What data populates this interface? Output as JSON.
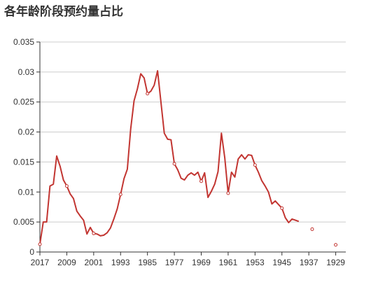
{
  "chart_data": {
    "type": "line",
    "title": "各年龄阶段预约量占比",
    "xlabel": "",
    "ylabel": "",
    "x_direction": "descending",
    "x_axis_min": 2017,
    "x_axis_max": 1926,
    "ylim": [
      0,
      0.035
    ],
    "y_ticks": [
      0,
      0.005,
      0.01,
      0.015,
      0.02,
      0.025,
      0.03,
      0.035
    ],
    "y_tick_labels": [
      "0",
      "0.005",
      "0.01",
      "0.015",
      "0.02",
      "0.025",
      "0.03",
      "0.035"
    ],
    "x_ticks": [
      2017,
      2009,
      2001,
      1993,
      1985,
      1977,
      1969,
      1961,
      1953,
      1945,
      1937,
      1929
    ],
    "x_tick_labels": [
      "2017",
      "2009",
      "2001",
      "1993",
      "1985",
      "1977",
      "1969",
      "1961",
      "1953",
      "1945",
      "1937",
      "1929"
    ],
    "grid": true,
    "legend": "none",
    "colors": {
      "line": "#c23531",
      "grid": "#cccccc",
      "axis": "#333333",
      "title": "#333333"
    },
    "series": [
      {
        "x": [
          2017,
          2016,
          2015,
          2014,
          2013,
          2012,
          2011,
          2010,
          2009,
          2008,
          2007,
          2006,
          2005,
          2004,
          2003,
          2002,
          2001,
          2000,
          1999,
          1998,
          1997,
          1996,
          1995,
          1994,
          1993,
          1992,
          1991,
          1990,
          1989,
          1988,
          1987,
          1986,
          1985,
          1984,
          1983,
          1982,
          1981,
          1980,
          1979,
          1978,
          1977,
          1976,
          1975,
          1974,
          1973,
          1972,
          1971,
          1970,
          1969,
          1968,
          1967,
          1966,
          1965,
          1964,
          1963,
          1962,
          1961,
          1960,
          1959,
          1958,
          1957,
          1956,
          1955,
          1954,
          1953,
          1952,
          1951,
          1950,
          1949,
          1948,
          1947,
          1946,
          1945,
          1944,
          1943,
          1942,
          1941,
          1940
        ],
        "y": [
          0.0013,
          0.005,
          0.005,
          0.011,
          0.0113,
          0.016,
          0.0143,
          0.012,
          0.011,
          0.0097,
          0.0089,
          0.0068,
          0.006,
          0.0053,
          0.003,
          0.0041,
          0.0031,
          0.003,
          0.0027,
          0.0028,
          0.0032,
          0.004,
          0.0055,
          0.0072,
          0.0096,
          0.0122,
          0.0138,
          0.0205,
          0.0252,
          0.0272,
          0.0297,
          0.029,
          0.0264,
          0.0268,
          0.0278,
          0.0302,
          0.025,
          0.0198,
          0.0188,
          0.0187,
          0.0147,
          0.0137,
          0.0123,
          0.012,
          0.0128,
          0.0132,
          0.0128,
          0.0133,
          0.0118,
          0.0132,
          0.0091,
          0.0101,
          0.0113,
          0.0134,
          0.0198,
          0.0157,
          0.0098,
          0.0133,
          0.0125,
          0.0155,
          0.0162,
          0.0155,
          0.0162,
          0.0161,
          0.0145,
          0.0133,
          0.0119,
          0.011,
          0.01,
          0.008,
          0.0085,
          0.0079,
          0.0073,
          0.0057,
          0.0049,
          0.0055,
          0.0053,
          0.0051
        ]
      },
      {
        "x": [
          1936,
          1929
        ],
        "y": [
          0.0038,
          0.0012
        ]
      }
    ],
    "marker_years": [
      2017,
      2009,
      2001,
      1993,
      1985,
      1977,
      1969,
      1961,
      1953,
      1945,
      1936,
      1929
    ]
  }
}
